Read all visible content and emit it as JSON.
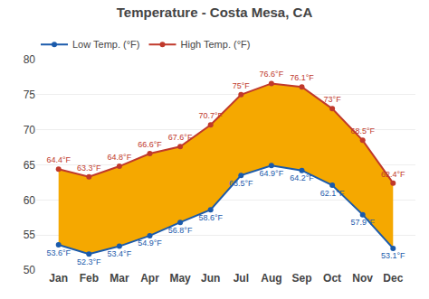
{
  "chart_data": {
    "type": "line",
    "title": "Temperature - Costa Mesa, CA",
    "categories": [
      "Jan",
      "Feb",
      "Mar",
      "Apr",
      "May",
      "Jun",
      "Jul",
      "Aug",
      "Sep",
      "Oct",
      "Nov",
      "Dec"
    ],
    "series": [
      {
        "name": "High Temp. (°F)",
        "color": "#c0392b",
        "marker": "circle",
        "values": [
          64.4,
          63.3,
          64.8,
          66.6,
          67.6,
          70.7,
          75.0,
          76.6,
          76.1,
          73.0,
          68.5,
          62.4
        ],
        "value_labels": [
          "64.4°F",
          "63.3°F",
          "64.8°F",
          "66.6°F",
          "67.6°F",
          "70.7°F",
          "75°F",
          "76.6°F",
          "76.1°F",
          "73°F",
          "68.5°F",
          "62.4°F"
        ]
      },
      {
        "name": "Low Temp. (°F)",
        "color": "#1a5aab",
        "marker": "circle",
        "values": [
          53.6,
          52.3,
          53.4,
          54.9,
          56.8,
          58.6,
          63.5,
          64.9,
          64.2,
          62.1,
          57.9,
          53.1
        ],
        "value_labels": [
          "53.6°F",
          "52.3°F",
          "53.4°F",
          "54.9°F",
          "56.8°F",
          "58.6°F",
          "63.5°F",
          "64.9°F",
          "64.2°F",
          "62.1°F",
          "57.9°F",
          "53.1°F"
        ]
      }
    ],
    "color": "#f5a800",
    "ylim": [
      50,
      80
    ],
    "yticks": [
      50,
      55,
      60,
      65,
      70,
      75,
      80
    ],
    "grid": true,
    "legend": "upper left",
    "data_labels": true
  }
}
